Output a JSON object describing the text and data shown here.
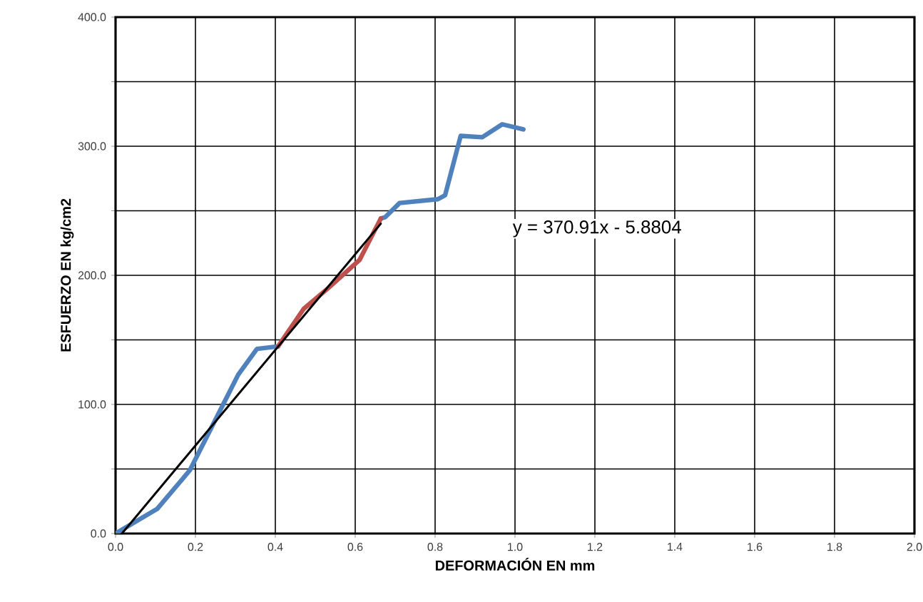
{
  "chart_data": {
    "type": "line",
    "xlabel": "DEFORMACIÓN EN mm",
    "ylabel": "ESFUERZO EN kg/cm2",
    "annotations": [
      "y = 370.91x - 5.8804"
    ],
    "series": [
      {
        "color": "#4f81bd",
        "x": [
          0,
          0.104,
          0.186,
          0.271,
          0.307,
          0.354,
          0.407,
          0.471,
          0.532,
          0.611,
          0.664,
          0.675,
          0.711,
          0.807,
          0.825,
          0.864,
          0.918,
          0.968,
          1.021
        ],
        "values": [
          0,
          19,
          49,
          101,
          123,
          143,
          145,
          null,
          null,
          null,
          244,
          245,
          256,
          259,
          262,
          308,
          307,
          317,
          313
        ]
      },
      {
        "color": "#c0504d",
        "x": [
          0.407,
          0.471,
          0.532,
          0.611,
          0.664
        ],
        "values": [
          145,
          174,
          190,
          212,
          244
        ]
      },
      {
        "color": "#000000",
        "x": [
          0.016,
          0.664
        ],
        "values": [
          0,
          240
        ]
      }
    ],
    "xlim": [
      0,
      2.0
    ],
    "ylim": [
      0,
      400
    ],
    "xticks": [
      {
        "value": 0,
        "label": "0.0"
      },
      {
        "value": 0.2,
        "label": "0.2"
      },
      {
        "value": 0.4,
        "label": "0.4"
      },
      {
        "value": 0.6,
        "label": "0.6"
      },
      {
        "value": 0.8,
        "label": "0.8"
      },
      {
        "value": 1.0,
        "label": "1.0"
      },
      {
        "value": 1.2,
        "label": "1.2"
      },
      {
        "value": 1.4,
        "label": "1.4"
      },
      {
        "value": 1.6,
        "label": "1.6"
      },
      {
        "value": 1.8,
        "label": "1.8"
      },
      {
        "value": 2.0,
        "label": "2.0"
      }
    ],
    "yticks": [
      {
        "value": 0,
        "label": "0.0"
      },
      {
        "value": 50,
        "label": null
      },
      {
        "value": 100,
        "label": "100.0"
      },
      {
        "value": 150,
        "label": null
      },
      {
        "value": 200,
        "label": "200.0"
      },
      {
        "value": 250,
        "label": null
      },
      {
        "value": 300,
        "label": "300.0"
      },
      {
        "value": 350,
        "label": null
      },
      {
        "value": 400,
        "label": "400.0"
      }
    ],
    "grid": true,
    "marker": "none",
    "line_style": "solid"
  }
}
